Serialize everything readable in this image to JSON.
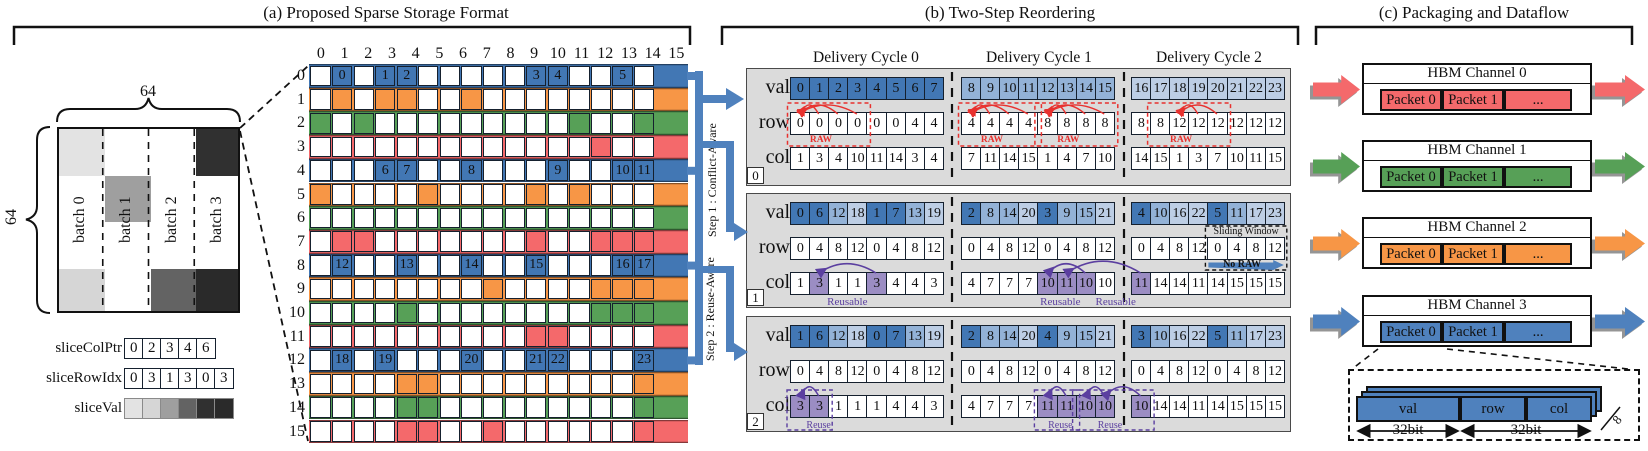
{
  "panels": {
    "a": {
      "title": "(a) Proposed Sparse Storage Format",
      "matrix": {
        "dim_width": "64",
        "dim_height": "64",
        "batches": [
          "batch 0",
          "batch 1",
          "batch 2",
          "batch 3"
        ],
        "slices": [
          {
            "col": 0,
            "band": 0,
            "color": "#E3E3E3"
          },
          {
            "col": 0,
            "band": 3,
            "color": "#D6D6D6"
          },
          {
            "col": 1,
            "band": 1,
            "color": "#9F9F9F"
          },
          {
            "col": 2,
            "band": 3,
            "color": "#636363"
          },
          {
            "col": 3,
            "band": 0,
            "color": "#303030"
          },
          {
            "col": 3,
            "band": 3,
            "color": "#2A2A2A"
          }
        ]
      },
      "arrays": [
        {
          "label": "sliceColPtr",
          "cells": [
            "0",
            "2",
            "3",
            "4",
            "6"
          ],
          "colors": null
        },
        {
          "label": "sliceRowIdx",
          "cells": [
            "0",
            "3",
            "1",
            "3",
            "0",
            "3"
          ],
          "colors": null
        },
        {
          "label": "sliceVal",
          "cells": [
            "",
            "",
            "",
            "",
            "",
            ""
          ],
          "colors": [
            "#E3E3E3",
            "#D6D6D6",
            "#9F9F9F",
            "#636363",
            "#303030",
            "#2A2A2A"
          ]
        }
      ],
      "grid": {
        "col_headers": [
          "0",
          "1",
          "2",
          "3",
          "4",
          "5",
          "6",
          "7",
          "8",
          "9",
          "10",
          "11",
          "12",
          "13",
          "14",
          "15"
        ],
        "row_headers": [
          "0",
          "1",
          "2",
          "3",
          "4",
          "5",
          "6",
          "7",
          "8",
          "9",
          "10",
          "11",
          "12",
          "13",
          "14",
          "15"
        ],
        "row_color_cycle": [
          "#4277B4",
          "#F79646",
          "#57A057",
          "#F4696B"
        ],
        "rows": [
          {
            "filled": {
              "1": "0",
              "3": "1",
              "4": "2",
              "10": "3",
              "11": "4",
              "14": "5"
            }
          },
          {
            "filled": {
              "1": "",
              "3": "",
              "4": "",
              "7": ""
            }
          },
          {
            "filled": {
              "0": "",
              "2": "",
              "12": "",
              "15": ""
            }
          },
          {
            "filled": {
              "13": ""
            }
          },
          {
            "filled": {
              "3": "6",
              "4": "7",
              "7": "8",
              "11": "9",
              "14": "10",
              "15": "11"
            }
          },
          {
            "filled": {
              "0": "",
              "5": "",
              "10": "",
              "12": ""
            }
          },
          {
            "filled": {}
          },
          {
            "filled": {
              "1": "",
              "2": "",
              "10": "",
              "13": "",
              "14": "",
              "15": ""
            }
          },
          {
            "filled": {
              "1": "12",
              "4": "13",
              "7": "14",
              "10": "15",
              "14": "16",
              "15": "17"
            }
          },
          {
            "filled": {
              "8": "",
              "13": "",
              "14": "",
              "15": ""
            }
          },
          {
            "filled": {
              "4": "",
              "13": "",
              "14": "",
              "15": ""
            }
          },
          {
            "filled": {
              "10": "",
              "11": ""
            }
          },
          {
            "filled": {
              "1": "18",
              "3": "19",
              "7": "20",
              "10": "21",
              "11": "22",
              "15": "23"
            }
          },
          {
            "filled": {
              "4": "",
              "5": "",
              "15": ""
            }
          },
          {
            "filled": {
              "4": "",
              "5": "",
              "15": ""
            }
          },
          {
            "filled": {
              "4": "",
              "5": "",
              "8": "",
              "15": ""
            }
          }
        ]
      }
    },
    "connector": {
      "step1": "Step 1 : Conflict-Aware",
      "step2": "Step 2 : Reuse-Aware",
      "color": "#4F81BD"
    },
    "b": {
      "title": "(b) Two-Step Reordering",
      "cycle_headers": [
        "Delivery Cycle 0",
        "Delivery Cycle 1",
        "Delivery Cycle 2"
      ],
      "row_labels": [
        "val",
        "row",
        "col"
      ],
      "val_shades": [
        "#4277B4",
        "#93B2D7",
        "#BDCEE5"
      ],
      "purple": "#9B8DC3",
      "annotations": {
        "raw": "RAW",
        "reusable": "Reusable",
        "reuse": "Reuse",
        "sliding_window": "Sliding Window",
        "no_raw": "No RAW"
      },
      "blocks": [
        {
          "badge": "0",
          "cycles": [
            {
              "val": [
                0,
                1,
                2,
                3,
                4,
                5,
                6,
                7
              ],
              "row": [
                0,
                0,
                0,
                0,
                0,
                0,
                4,
                4
              ],
              "col": [
                1,
                3,
                4,
                10,
                11,
                14,
                3,
                4
              ]
            },
            {
              "val": [
                8,
                9,
                10,
                11,
                12,
                13,
                14,
                15
              ],
              "row": [
                4,
                4,
                4,
                4,
                8,
                8,
                8,
                8
              ],
              "col": [
                7,
                11,
                14,
                15,
                1,
                4,
                7,
                10
              ]
            },
            {
              "val": [
                16,
                17,
                18,
                19,
                20,
                21,
                22,
                23
              ],
              "row": [
                8,
                8,
                12,
                12,
                12,
                12,
                12,
                12
              ],
              "col": [
                14,
                15,
                1,
                3,
                7,
                10,
                11,
                15
              ]
            }
          ],
          "raw_boxes": [
            {
              "cycle": 0,
              "start": 0,
              "end": 3,
              "target": 0,
              "sources": [
                1,
                2,
                3
              ]
            },
            {
              "cycle": 1,
              "start": 0,
              "end": 3,
              "target": 0,
              "sources": [
                1,
                2,
                3
              ]
            },
            {
              "cycle": 1,
              "start": 4,
              "end": 7,
              "target": 4,
              "sources": [
                5,
                6,
                7
              ]
            },
            {
              "cycle": 2,
              "start": 1,
              "end": 4,
              "target": 2,
              "sources": [
                3,
                4
              ]
            }
          ],
          "purple_cells": [],
          "arcs": [],
          "labels": [],
          "dashed_boxes": []
        },
        {
          "badge": "1",
          "cycles": [
            {
              "val": [
                0,
                6,
                12,
                18,
                1,
                7,
                13,
                19
              ],
              "row": [
                0,
                4,
                8,
                12,
                0,
                4,
                8,
                12
              ],
              "col": [
                1,
                3,
                1,
                1,
                3,
                4,
                4,
                3
              ]
            },
            {
              "val": [
                2,
                8,
                14,
                20,
                3,
                9,
                15,
                21
              ],
              "row": [
                0,
                4,
                8,
                12,
                0,
                4,
                8,
                12
              ],
              "col": [
                4,
                7,
                7,
                7,
                10,
                11,
                10,
                10
              ]
            },
            {
              "val": [
                4,
                10,
                16,
                22,
                5,
                11,
                17,
                23
              ],
              "row": [
                0,
                4,
                8,
                12,
                0,
                4,
                8,
                12
              ],
              "col": [
                11,
                14,
                14,
                11,
                14,
                15,
                15,
                15
              ]
            }
          ],
          "raw_boxes": [],
          "purple_cells": [
            {
              "cycle": 0,
              "cells": [
                1,
                4
              ]
            },
            {
              "cycle": 1,
              "cells": [
                4,
                5,
                6
              ]
            },
            {
              "cycle": 2,
              "cells": [
                0
              ]
            }
          ],
          "arcs": [
            {
              "from": [
                0,
                4
              ],
              "to": [
                0,
                1
              ]
            },
            {
              "from": [
                1,
                6
              ],
              "to": [
                1,
                4
              ]
            },
            {
              "from": [
                2,
                0
              ],
              "to": [
                1,
                5
              ]
            }
          ],
          "labels": [
            {
              "cycle": 0,
              "at": 2.5,
              "text": "Reusable"
            },
            {
              "cycle": 1,
              "at": 4.7,
              "text": "Reusable"
            },
            {
              "cycle": 1,
              "at": 7.6,
              "text": "Reusable"
            }
          ],
          "dashed_boxes": [],
          "sliding_window": {
            "cycle": 2,
            "start": 4,
            "end": 7
          }
        },
        {
          "badge": "2",
          "cycles": [
            {
              "val": [
                1,
                6,
                12,
                18,
                0,
                7,
                13,
                19
              ],
              "row": [
                0,
                4,
                8,
                12,
                0,
                4,
                8,
                12
              ],
              "col": [
                3,
                3,
                1,
                1,
                1,
                4,
                4,
                3
              ]
            },
            {
              "val": [
                2,
                8,
                14,
                20,
                4,
                9,
                15,
                21
              ],
              "row": [
                0,
                4,
                8,
                12,
                0,
                4,
                8,
                12
              ],
              "col": [
                4,
                7,
                7,
                7,
                11,
                11,
                10,
                10
              ]
            },
            {
              "val": [
                3,
                10,
                16,
                22,
                5,
                11,
                17,
                23
              ],
              "row": [
                0,
                4,
                8,
                12,
                0,
                4,
                8,
                12
              ],
              "col": [
                10,
                14,
                14,
                11,
                14,
                15,
                15,
                15
              ]
            }
          ],
          "raw_boxes": [],
          "purple_cells": [
            {
              "cycle": 0,
              "cells": [
                0,
                1
              ]
            },
            {
              "cycle": 1,
              "cells": [
                4,
                5,
                6,
                7
              ]
            },
            {
              "cycle": 2,
              "cells": [
                0
              ]
            }
          ],
          "arcs": [
            {
              "from": [
                0,
                1
              ],
              "to": [
                0,
                0
              ]
            },
            {
              "from": [
                1,
                5
              ],
              "to": [
                1,
                4
              ]
            },
            {
              "from": [
                1,
                7
              ],
              "to": [
                1,
                6
              ]
            },
            {
              "from": [
                2,
                0
              ],
              "to": [
                1,
                7
              ]
            }
          ],
          "labels": [],
          "dashed_boxes": [
            {
              "from": [
                0,
                0
              ],
              "to": [
                0,
                1
              ],
              "label": "Reuse",
              "at": 1.0
            },
            {
              "from": [
                1,
                4
              ],
              "to": [
                1,
                5
              ],
              "label": "Reuse",
              "at": 4.7
            },
            {
              "from": [
                1,
                6
              ],
              "to": [
                2,
                0
              ],
              "label": "Reuse",
              "at": 7.3
            }
          ]
        }
      ]
    },
    "c": {
      "title": "(c) Packaging and Dataflow",
      "channels": [
        {
          "name": "HBM Channel 0",
          "color": "#F4696B",
          "packets": [
            "Packet 0",
            "Packet 1",
            "..."
          ]
        },
        {
          "name": "HBM Channel 1",
          "color": "#57A057",
          "packets": [
            "Packet 0",
            "Packet 1",
            "..."
          ]
        },
        {
          "name": "HBM Channel 2",
          "color": "#F79646",
          "packets": [
            "Packet 0",
            "Packet 1",
            "..."
          ]
        },
        {
          "name": "HBM Channel 3",
          "color": "#4F81BD",
          "packets": [
            "Packet 0",
            "Packet 1",
            "..."
          ]
        }
      ],
      "detail": {
        "segments": [
          "val",
          "row",
          "col"
        ],
        "bit_left": "32bit",
        "bit_right": "32bit",
        "depth": "8",
        "color": "#4F81BD"
      }
    }
  }
}
